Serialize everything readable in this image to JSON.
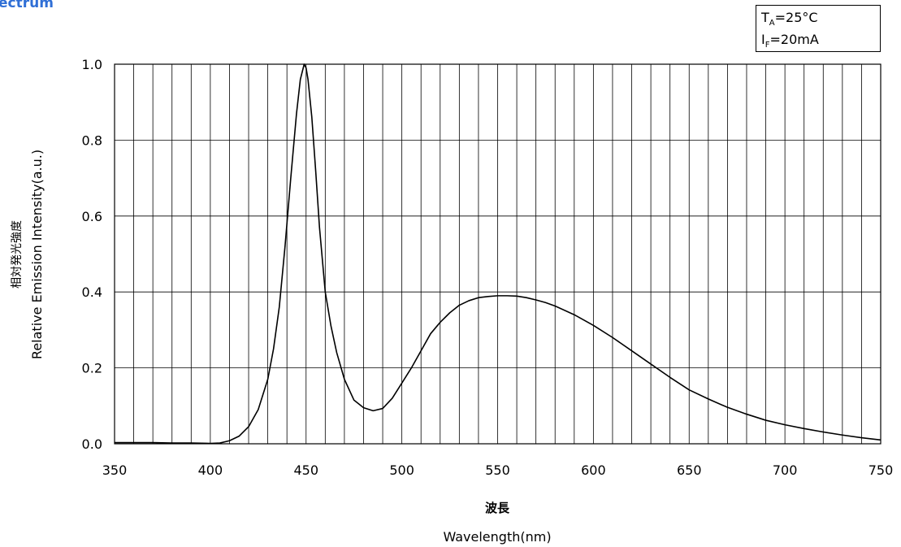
{
  "corner_title": "ectrum",
  "conditions": {
    "ta_main": "T",
    "ta_sub": "A",
    "ta_value": "=25°C",
    "if_main": "I",
    "if_sub": "F",
    "if_value": "=20mA"
  },
  "chart_data": {
    "type": "line",
    "xlabel_jp": "波長",
    "xlabel": "Wavelength(nm)",
    "ylabel_jp": "相対発光強度",
    "ylabel": "Relative Emission Intensity(a.u.)",
    "xlim": [
      350,
      750
    ],
    "ylim": [
      0,
      1.0
    ],
    "x_ticks": [
      "350",
      "400",
      "450",
      "500",
      "550",
      "600",
      "650",
      "700",
      "750"
    ],
    "y_ticks": [
      "0.0",
      "0.2",
      "0.4",
      "0.6",
      "0.8",
      "1.0"
    ],
    "x_grid_step": 10,
    "y_grid_step": 0.2,
    "grid": true,
    "line_color": "#000000",
    "series": [
      {
        "x": [
          350,
          360,
          370,
          380,
          390,
          400,
          405,
          410,
          415,
          420,
          425,
          430,
          433,
          436,
          439,
          442,
          445,
          447,
          449,
          450,
          451,
          453,
          455,
          457,
          460,
          463,
          466,
          470,
          475,
          480,
          485,
          490,
          495,
          500,
          505,
          510,
          515,
          520,
          525,
          530,
          535,
          540,
          545,
          550,
          555,
          560,
          565,
          570,
          575,
          580,
          590,
          600,
          610,
          620,
          630,
          640,
          650,
          660,
          670,
          680,
          690,
          700,
          710,
          720,
          730,
          740,
          750
        ],
        "y": [
          0.003,
          0.003,
          0.003,
          0.002,
          0.002,
          0.001,
          0.002,
          0.008,
          0.02,
          0.045,
          0.09,
          0.17,
          0.25,
          0.36,
          0.52,
          0.7,
          0.87,
          0.96,
          1.0,
          0.99,
          0.96,
          0.86,
          0.72,
          0.57,
          0.4,
          0.31,
          0.24,
          0.17,
          0.115,
          0.095,
          0.087,
          0.093,
          0.12,
          0.16,
          0.2,
          0.245,
          0.29,
          0.32,
          0.345,
          0.365,
          0.377,
          0.385,
          0.388,
          0.39,
          0.39,
          0.389,
          0.385,
          0.379,
          0.372,
          0.363,
          0.34,
          0.312,
          0.28,
          0.245,
          0.21,
          0.175,
          0.142,
          0.118,
          0.096,
          0.078,
          0.062,
          0.05,
          0.04,
          0.031,
          0.023,
          0.016,
          0.01
        ]
      }
    ]
  }
}
